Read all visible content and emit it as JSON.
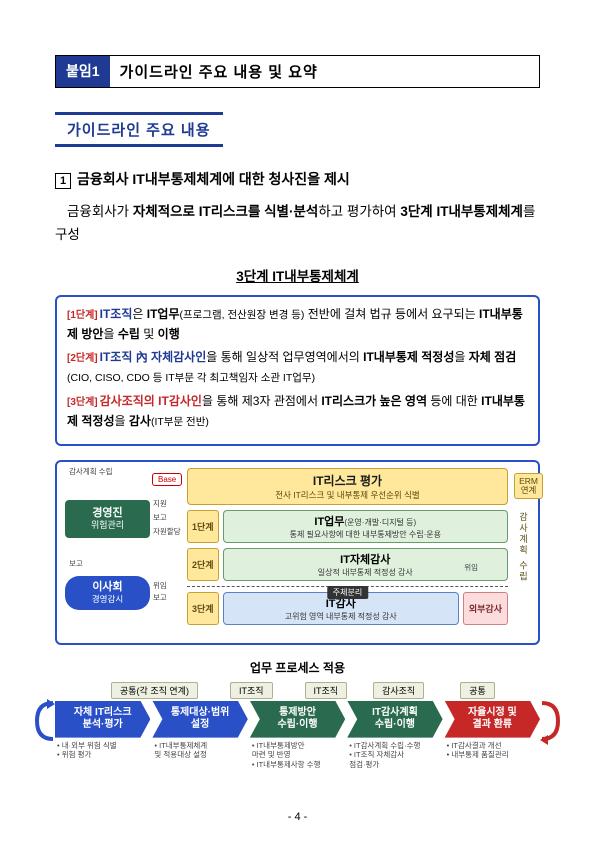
{
  "title": {
    "badge": "붙임1",
    "text": "가이드라인 주요 내용 및 요약"
  },
  "section_heading": "가이드라인 주요 내용",
  "item1": {
    "num": "1",
    "text": "금융회사 IT내부통제체계에 대한 청사진을 제시"
  },
  "para1": {
    "pre": "금융회사가 ",
    "bold1": "자체적으로 IT리스크를 식별·분석",
    "mid": "하고 평가하여 ",
    "bold2": "3단계 IT내부통제체계",
    "post": "를 구성"
  },
  "subheading": "3단계 IT내부통제체계",
  "callout": {
    "r1": {
      "tag": "[1단계]",
      "kw": "IT조직",
      "rest1": "은 ",
      "b1": "IT업무",
      "small": "(프로그램, 전산원장 변경 등)",
      "rest2": " 전반에 걸쳐 법규 등에서 요구되는 ",
      "b2": "IT내부통제 방안",
      "rest3": "을 ",
      "b3": "수립",
      "rest4": " 및 ",
      "b4": "이행"
    },
    "r2": {
      "tag": "[2단계]",
      "kw": "IT조직 內 자체감사인",
      "rest1": "을 통해 일상적 업무영역에서의 ",
      "b1": "IT내부통제 적정성",
      "rest2": "을 ",
      "b2": "자체 점검",
      "small": "(CIO, CISO, CDO 등 IT부문 각 최고책임자 소관 IT업무)"
    },
    "r3": {
      "tag": "[3단계]",
      "kw": "감사조직의 IT감사인",
      "rest1": "을 통해 제3자 관점에서 ",
      "b1": "IT리스크가 높은 영역",
      "rest2": " 등에 대한 ",
      "b2": "IT내부통제 적정성",
      "rest3": "을 ",
      "b3": "감사",
      "small": "(IT부문 전반)"
    }
  },
  "diagram": {
    "mgmt": {
      "title": "경영진",
      "sub": "위험관리"
    },
    "board": {
      "title": "이사회",
      "sub": "경영감시"
    },
    "risk": {
      "title": "IT리스크 평가",
      "sub": "전사 IT리스크 및 내부통제 우선순위 식별",
      "base": "Base",
      "erm": "ERM\n연계"
    },
    "stage1": "1단계",
    "stage2": "2단계",
    "stage3": "3단계",
    "box1": {
      "title": "IT업무",
      "tail": "(운영·개발·디지털 등)",
      "sub": "통제 필요사항에 대한 내부통제방안 수립·운용"
    },
    "box2": {
      "title": "IT자체감사",
      "sub": "일상적 내부통제 적정성 감사"
    },
    "box3": {
      "title": "IT감사",
      "sub": "고위험 영역 내부통제 적정성 감사"
    },
    "ext": "외부감사",
    "vlabel": "감사계획 수립",
    "center_tag": "주체분리",
    "conn": {
      "a": "지원",
      "b": "보고",
      "c": "감사계획 수립",
      "d": "위임",
      "e": "자원할당"
    }
  },
  "process": {
    "header": "업무 프로세스 적용",
    "labels": [
      "공통(각 조직 연계)",
      "IT조직",
      "IT조직",
      "감사조직",
      "공통"
    ],
    "steps": [
      {
        "t": "자체 IT리스크\n분석·평가",
        "color": "#2a50c8",
        "desc": "• 내·외부 위험 식별\n• 위험 평가"
      },
      {
        "t": "통제대상·범위\n설정",
        "color": "#2a50c8",
        "desc": "• IT내부통제체계\n  및 적용대상 설정"
      },
      {
        "t": "통제방안\n수립·이행",
        "color": "#2a6b4f",
        "desc": "• IT내부통제방안\n  마련 및 반영\n• IT내부통제사항 수행"
      },
      {
        "t": "IT감사계획\n수립·이행",
        "color": "#2a6b4f",
        "desc": "• IT감사계획 수립·수행\n• IT조직 자체감사\n  점검·평가"
      },
      {
        "t": "자율시정 및\n결과 환류",
        "color": "#c62828",
        "desc": "• IT감사결과 개선\n• 내부통제 품질관리"
      }
    ],
    "left_arrow_color": "#2a50c8",
    "right_arrow_color": "#c62828"
  },
  "page_num": "- 4 -"
}
